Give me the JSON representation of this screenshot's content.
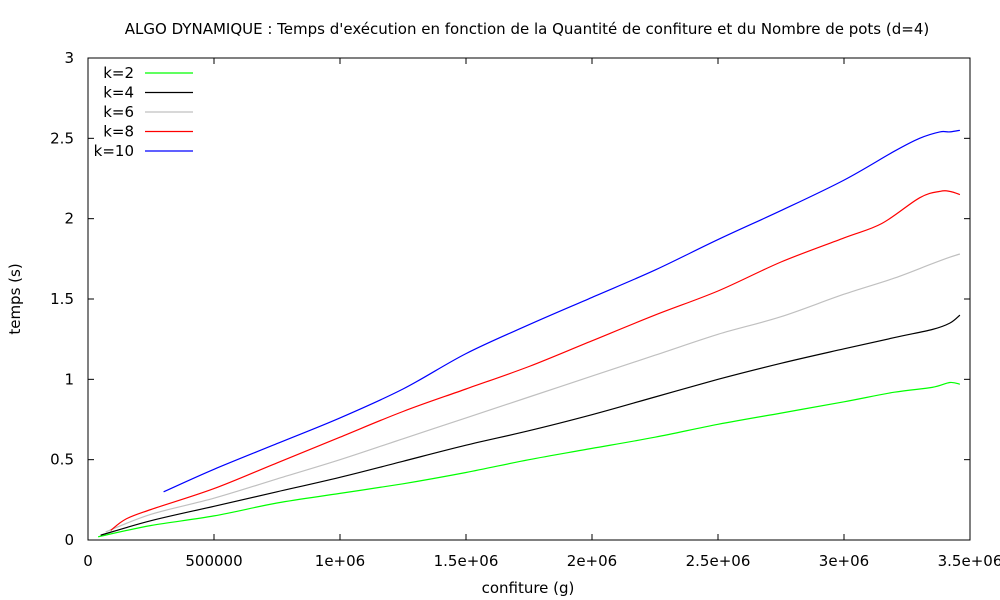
{
  "chart_data": {
    "type": "line",
    "title": "ALGO DYNAMIQUE : Temps d'exécution en fonction de la Quantité de confiture et du Nombre de pots (d=4)",
    "xlabel": "confiture (g)",
    "ylabel": "temps (s)",
    "xlim": [
      0,
      3500000
    ],
    "ylim": [
      0,
      3
    ],
    "grid": false,
    "legend_position": "top-left",
    "x_ticks": [
      0,
      500000,
      1000000,
      1500000,
      2000000,
      2500000,
      3000000,
      3500000
    ],
    "x_tick_labels": [
      "0",
      "500000",
      "1e+06",
      "1.5e+06",
      "2e+06",
      "2.5e+06",
      "3e+06",
      "3.5e+06"
    ],
    "y_ticks": [
      0,
      0.5,
      1,
      1.5,
      2,
      2.5,
      3
    ],
    "y_tick_labels": [
      "0",
      "0.5",
      "1",
      "1.5",
      "2",
      "2.5",
      "3"
    ],
    "series": [
      {
        "name": "k=2",
        "color": "#00ff00",
        "x": [
          40000,
          250000,
          500000,
          750000,
          1000000,
          1250000,
          1500000,
          1750000,
          2000000,
          2250000,
          2500000,
          2750000,
          3000000,
          3200000,
          3350000,
          3420000,
          3460000
        ],
        "y": [
          0.02,
          0.09,
          0.15,
          0.23,
          0.29,
          0.35,
          0.42,
          0.5,
          0.57,
          0.64,
          0.72,
          0.79,
          0.86,
          0.92,
          0.95,
          0.98,
          0.97
        ]
      },
      {
        "name": "k=4",
        "color": "#000000",
        "x": [
          50000,
          250000,
          500000,
          750000,
          1000000,
          1250000,
          1500000,
          1750000,
          2000000,
          2250000,
          2500000,
          2750000,
          3000000,
          3200000,
          3350000,
          3420000,
          3460000
        ],
        "y": [
          0.03,
          0.12,
          0.21,
          0.3,
          0.39,
          0.49,
          0.59,
          0.68,
          0.78,
          0.89,
          1.0,
          1.1,
          1.19,
          1.26,
          1.31,
          1.35,
          1.4
        ]
      },
      {
        "name": "k=6",
        "color": "#c0c0c0",
        "x": [
          70000,
          250000,
          500000,
          750000,
          1000000,
          1250000,
          1500000,
          1750000,
          2000000,
          2250000,
          2500000,
          2750000,
          3000000,
          3200000,
          3350000,
          3420000,
          3460000
        ],
        "y": [
          0.05,
          0.16,
          0.26,
          0.38,
          0.5,
          0.63,
          0.76,
          0.89,
          1.02,
          1.15,
          1.28,
          1.39,
          1.53,
          1.63,
          1.72,
          1.76,
          1.78
        ]
      },
      {
        "name": "k=8",
        "color": "#ff0000",
        "x": [
          90000,
          150000,
          250000,
          500000,
          750000,
          1000000,
          1250000,
          1500000,
          1750000,
          2000000,
          2250000,
          2500000,
          2750000,
          3000000,
          3150000,
          3300000,
          3380000,
          3420000,
          3460000
        ],
        "y": [
          0.06,
          0.13,
          0.19,
          0.32,
          0.48,
          0.64,
          0.8,
          0.94,
          1.08,
          1.24,
          1.4,
          1.55,
          1.73,
          1.88,
          1.97,
          2.13,
          2.17,
          2.17,
          2.15
        ]
      },
      {
        "name": "k=10",
        "color": "#0000ff",
        "x": [
          300000,
          500000,
          750000,
          1000000,
          1250000,
          1500000,
          1750000,
          2000000,
          2250000,
          2500000,
          2750000,
          3000000,
          3200000,
          3300000,
          3380000,
          3420000,
          3460000
        ],
        "y": [
          0.3,
          0.44,
          0.6,
          0.76,
          0.94,
          1.16,
          1.34,
          1.51,
          1.68,
          1.87,
          2.05,
          2.24,
          2.42,
          2.5,
          2.54,
          2.54,
          2.55
        ]
      }
    ]
  }
}
